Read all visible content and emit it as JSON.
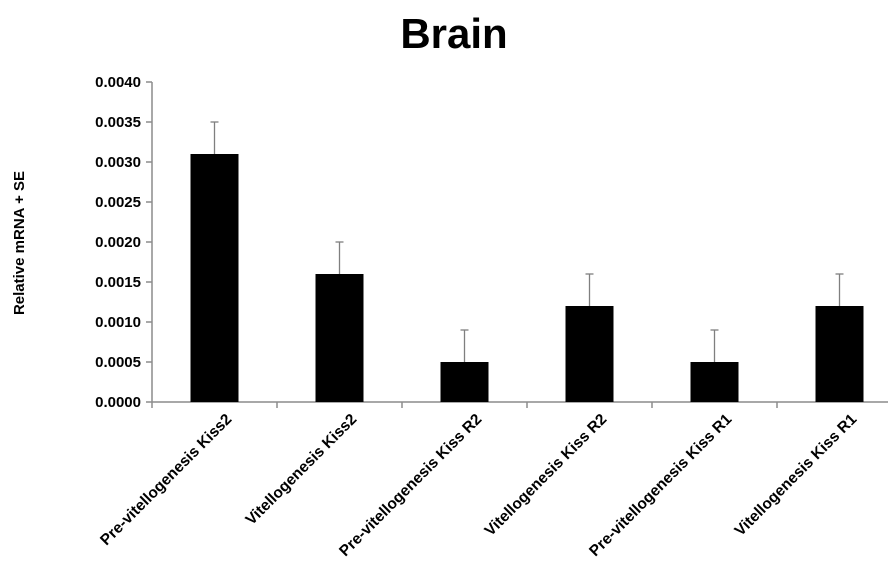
{
  "chart_data": {
    "type": "bar",
    "title": "Brain",
    "xlabel": "",
    "ylabel": "Relative  mRNA + SE",
    "ylim": [
      0,
      0.004
    ],
    "yticks": [
      "0.0000",
      "0.0005",
      "0.0010",
      "0.0015",
      "0.0020",
      "0.0025",
      "0.0030",
      "0.0035",
      "0.0040"
    ],
    "categories": [
      "Pre-vitellogenesis Kiss2",
      "Vitellogenesis Kiss2",
      "Pre-vitellogenesis Kiss R2",
      "Vitellogenesis  Kiss R2",
      "Pre-vitellogenesis Kiss R1",
      "Vitellogenesis Kiss R1"
    ],
    "values": [
      0.0031,
      0.0016,
      0.0005,
      0.0012,
      0.0005,
      0.0012
    ],
    "errors": [
      0.0004,
      0.0004,
      0.0004,
      0.0004,
      0.0004,
      0.0004
    ],
    "grid": false,
    "legend": "none",
    "bar_color": "#000000",
    "error_color": "#7f7f7f",
    "axis_color": "#8c8c8c"
  }
}
